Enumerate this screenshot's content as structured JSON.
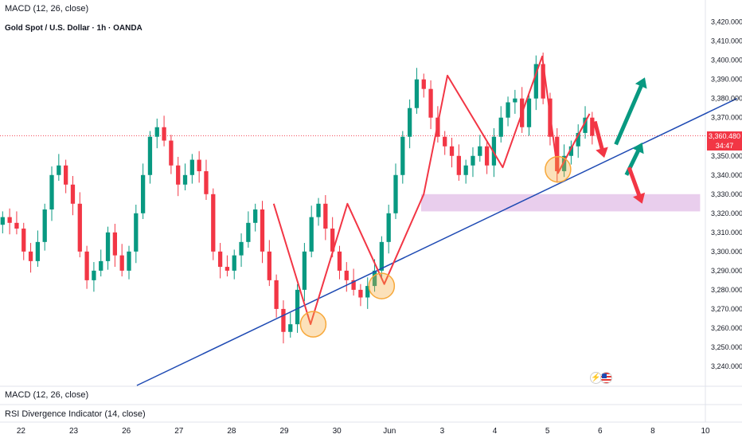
{
  "header": {
    "indicator_top": "MACD (12, 26, close)",
    "symbol": "Gold Spot / U.S. Dollar · 1h · OANDA"
  },
  "panes": {
    "macd_label": "MACD (12, 26, close)",
    "rsi_label": "RSI Divergence Indicator (14, close)"
  },
  "last_price": {
    "value": "3,360.480",
    "countdown": "34:47",
    "color": "#f23645"
  },
  "events": {
    "icons": [
      "lightning-icon",
      "us-flag-icon"
    ]
  },
  "chart_data": {
    "type": "candlestick",
    "symbol": "Gold Spot / U.S. Dollar · 1h · OANDA",
    "y_axis": {
      "ticks": [
        3240,
        3250,
        3260,
        3270,
        3280,
        3290,
        3300,
        3310,
        3320,
        3330,
        3340,
        3350,
        3360,
        3370,
        3380,
        3390,
        3400,
        3410,
        3420
      ],
      "tick_labels": [
        "3,240.000",
        "3,250.000",
        "3,260.000",
        "3,270.000",
        "3,280.000",
        "3,290.000",
        "3,300.000",
        "3,310.000",
        "3,320.000",
        "3,330.000",
        "3,340.000",
        "3,350.000",
        "3,360.000",
        "3,370.000",
        "3,380.000",
        "3,390.000",
        "3,400.000",
        "3,410.000",
        "3,420.000"
      ],
      "range": [
        3230,
        3424
      ]
    },
    "x_axis": {
      "labels": [
        "22",
        "23",
        "26",
        "27",
        "28",
        "29",
        "30",
        "Jun",
        "3",
        "4",
        "5",
        "6",
        "8",
        "10"
      ],
      "range": [
        21.6,
        35.0
      ],
      "label_positions": [
        22,
        23,
        24,
        25,
        26,
        27,
        28,
        29,
        30,
        31,
        32,
        33,
        34,
        35
      ]
    },
    "up_color": "#089981",
    "down_color": "#f23645",
    "last_price": 3360.48,
    "candles_close": [
      3318,
      3315,
      3312,
      3300,
      3295,
      3305,
      3322,
      3340,
      3345,
      3335,
      3325,
      3300,
      3285,
      3290,
      3295,
      3310,
      3298,
      3290,
      3300,
      3320,
      3340,
      3360,
      3365,
      3358,
      3345,
      3335,
      3340,
      3348,
      3342,
      3330,
      3300,
      3292,
      3290,
      3298,
      3305,
      3315,
      3322,
      3300,
      3285,
      3270,
      3258,
      3262,
      3280,
      3300,
      3318,
      3325,
      3312,
      3300,
      3290,
      3285,
      3280,
      3276,
      3282,
      3290,
      3305,
      3320,
      3340,
      3360,
      3375,
      3390,
      3385,
      3370,
      3360,
      3355,
      3350,
      3340,
      3345,
      3350,
      3355,
      3345,
      3360,
      3370,
      3378,
      3380,
      3365,
      3380,
      3398,
      3380,
      3360,
      3342,
      3350,
      3355,
      3362,
      3370,
      3360.48
    ],
    "trend_line": {
      "from": [
        24.2,
        3230
      ],
      "to": [
        35.6,
        3380
      ],
      "color": "#1e4ab3"
    },
    "zigzag": {
      "color": "#f23645",
      "points": [
        [
          26.8,
          3325
        ],
        [
          27.5,
          3262
        ],
        [
          28.2,
          3325
        ],
        [
          28.9,
          3283
        ],
        [
          29.65,
          3330
        ],
        [
          30.1,
          3392
        ],
        [
          31.15,
          3344
        ],
        [
          31.9,
          3402
        ],
        [
          32.2,
          3341
        ],
        [
          32.8,
          3372
        ]
      ]
    },
    "support_zone": {
      "price_range": [
        3321,
        3330
      ],
      "x_range": [
        29.6,
        34.9
      ],
      "color": "#e1bee7"
    },
    "circles": {
      "color": "#f7a83a",
      "centers": [
        [
          27.55,
          3262
        ],
        [
          28.85,
          3282
        ],
        [
          32.2,
          3343
        ]
      ]
    },
    "arrows": {
      "up_color": "#089981",
      "down_color": "#f23645",
      "up": [
        [
          [
            33.3,
            3356
          ],
          [
            33.85,
            3391
          ]
        ],
        [
          [
            33.5,
            3340
          ],
          [
            33.8,
            3357
          ]
        ]
      ],
      "down": [
        [
          [
            32.9,
            3368
          ],
          [
            33.08,
            3349
          ]
        ],
        [
          [
            33.55,
            3344
          ],
          [
            33.8,
            3325
          ]
        ]
      ]
    }
  }
}
